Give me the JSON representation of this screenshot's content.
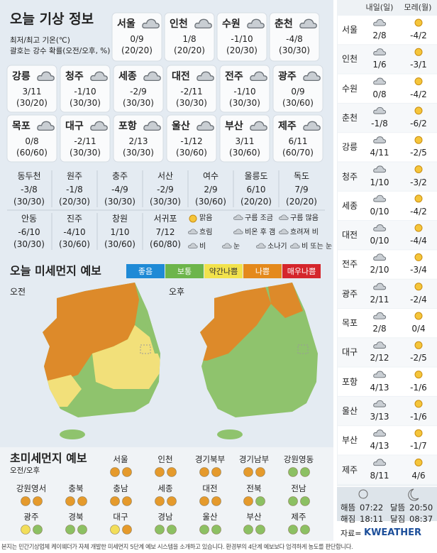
{
  "header": {
    "title": "오늘 기상 정보",
    "notes": [
      "최저/최고 기온(℃)",
      "괄호는 강수 확률(오전/오후, %)"
    ]
  },
  "cities": [
    {
      "name": "서울",
      "temp": "0/9",
      "rain": "(20/20)"
    },
    {
      "name": "인천",
      "temp": "1/8",
      "rain": "(20/20)"
    },
    {
      "name": "수원",
      "temp": "-1/10",
      "rain": "(20/30)"
    },
    {
      "name": "춘천",
      "temp": "-4/8",
      "rain": "(30/30)"
    },
    {
      "name": "강릉",
      "temp": "3/11",
      "rain": "(30/20)"
    },
    {
      "name": "청주",
      "temp": "-1/10",
      "rain": "(30/30)"
    },
    {
      "name": "세종",
      "temp": "-2/9",
      "rain": "(30/30)"
    },
    {
      "name": "대전",
      "temp": "-2/11",
      "rain": "(30/30)"
    },
    {
      "name": "전주",
      "temp": "-1/10",
      "rain": "(30/30)"
    },
    {
      "name": "광주",
      "temp": "0/9",
      "rain": "(30/60)"
    },
    {
      "name": "목포",
      "temp": "0/8",
      "rain": "(60/60)"
    },
    {
      "name": "대구",
      "temp": "-2/11",
      "rain": "(30/30)"
    },
    {
      "name": "포항",
      "temp": "2/13",
      "rain": "(30/30)"
    },
    {
      "name": "울산",
      "temp": "-1/12",
      "rain": "(30/60)"
    },
    {
      "name": "부산",
      "temp": "3/11",
      "rain": "(30/60)"
    },
    {
      "name": "제주",
      "temp": "6/11",
      "rain": "(60/70)"
    }
  ],
  "minor_cities": [
    {
      "name": "동두천",
      "temp": "-3/8",
      "rain": "(30/30)"
    },
    {
      "name": "원주",
      "temp": "-1/8",
      "rain": "(20/30)"
    },
    {
      "name": "충주",
      "temp": "-4/9",
      "rain": "(30/30)"
    },
    {
      "name": "서산",
      "temp": "-2/9",
      "rain": "(30/30)"
    },
    {
      "name": "여수",
      "temp": "2/9",
      "rain": "(30/60)"
    },
    {
      "name": "울릉도",
      "temp": "6/10",
      "rain": "(20/20)"
    },
    {
      "name": "독도",
      "temp": "7/9",
      "rain": "(20/20)"
    },
    {
      "name": "안동",
      "temp": "-6/10",
      "rain": "(30/30)"
    },
    {
      "name": "진주",
      "temp": "-4/10",
      "rain": "(30/60)"
    },
    {
      "name": "창원",
      "temp": "1/10",
      "rain": "(30/60)"
    },
    {
      "name": "서귀포",
      "temp": "7/12",
      "rain": "(60/80)"
    }
  ],
  "icon_legend": [
    "맑음",
    "구름 조금",
    "구름 많음",
    "흐림",
    "비온 후 갬",
    "흐려져 비",
    "비",
    "눈",
    "소나기",
    "비 또는 눈"
  ],
  "dust": {
    "title": "오늘 미세먼지 예보",
    "scale": [
      {
        "label": "좋음",
        "color": "#1f8ad6"
      },
      {
        "label": "보통",
        "color": "#6db54b"
      },
      {
        "label": "약간나쁨",
        "color": "#f2e24c"
      },
      {
        "label": "나쁨",
        "color": "#e4891c"
      },
      {
        "label": "매우나쁨",
        "color": "#d5262c"
      }
    ],
    "am": "오전",
    "pm": "오후"
  },
  "fine_dust": {
    "title": "초미세먼지 예보",
    "subtitle": "오전/오후",
    "regions": [
      {
        "name": "서울",
        "colors": [
          "#e59a2c",
          "#e59a2c"
        ]
      },
      {
        "name": "인천",
        "colors": [
          "#e59a2c",
          "#e59a2c"
        ]
      },
      {
        "name": "경기북부",
        "colors": [
          "#e59a2c",
          "#e59a2c"
        ]
      },
      {
        "name": "경기남부",
        "colors": [
          "#e59a2c",
          "#e59a2c"
        ]
      },
      {
        "name": "강원영동",
        "colors": [
          "#8cc063",
          "#8cc063"
        ]
      },
      {
        "name": "강원영서",
        "colors": [
          "#e59a2c",
          "#e59a2c"
        ]
      },
      {
        "name": "충북",
        "colors": [
          "#e59a2c",
          "#e59a2c"
        ]
      },
      {
        "name": "충남",
        "colors": [
          "#e59a2c",
          "#e59a2c"
        ]
      },
      {
        "name": "세종",
        "colors": [
          "#e59a2c",
          "#e59a2c"
        ]
      },
      {
        "name": "대전",
        "colors": [
          "#e59a2c",
          "#e59a2c"
        ]
      },
      {
        "name": "전북",
        "colors": [
          "#e59a2c",
          "#8cc063"
        ]
      },
      {
        "name": "전남",
        "colors": [
          "#8cc063",
          "#8cc063"
        ]
      },
      {
        "name": "광주",
        "colors": [
          "#f2de5a",
          "#8cc063"
        ]
      },
      {
        "name": "경북",
        "colors": [
          "#8cc063",
          "#8cc063"
        ]
      },
      {
        "name": "대구",
        "colors": [
          "#f2de5a",
          "#e59a2c"
        ]
      },
      {
        "name": "경남",
        "colors": [
          "#8cc063",
          "#8cc063"
        ]
      },
      {
        "name": "울산",
        "colors": [
          "#8cc063",
          "#8cc063"
        ]
      },
      {
        "name": "부산",
        "colors": [
          "#8cc063",
          "#8cc063"
        ]
      },
      {
        "name": "제주",
        "colors": [
          "#8cc063",
          "#8cc063"
        ]
      }
    ]
  },
  "forecast": {
    "days": [
      "내일(일)",
      "모레(월)"
    ],
    "rows": [
      {
        "city": "서울",
        "temps": [
          "2/8",
          "-4/2"
        ]
      },
      {
        "city": "인천",
        "temps": [
          "1/6",
          "-3/1"
        ]
      },
      {
        "city": "수원",
        "temps": [
          "0/8",
          "-4/2"
        ]
      },
      {
        "city": "춘천",
        "temps": [
          "-1/8",
          "-6/2"
        ]
      },
      {
        "city": "강릉",
        "temps": [
          "4/11",
          "-2/5"
        ]
      },
      {
        "city": "청주",
        "temps": [
          "1/10",
          "-3/2"
        ]
      },
      {
        "city": "세종",
        "temps": [
          "0/10",
          "-4/2"
        ]
      },
      {
        "city": "대전",
        "temps": [
          "0/10",
          "-4/4"
        ]
      },
      {
        "city": "전주",
        "temps": [
          "2/10",
          "-3/4"
        ]
      },
      {
        "city": "광주",
        "temps": [
          "2/11",
          "-2/4"
        ]
      },
      {
        "city": "목포",
        "temps": [
          "2/8",
          "0/4"
        ]
      },
      {
        "city": "대구",
        "temps": [
          "2/12",
          "-2/5"
        ]
      },
      {
        "city": "포항",
        "temps": [
          "4/13",
          "-1/6"
        ]
      },
      {
        "city": "울산",
        "temps": [
          "3/13",
          "-1/6"
        ]
      },
      {
        "city": "부산",
        "temps": [
          "4/13",
          "-1/7"
        ]
      },
      {
        "city": "제주",
        "temps": [
          "8/11",
          "4/6"
        ]
      }
    ]
  },
  "astro": [
    {
      "label": "해뜸",
      "time": "07:22"
    },
    {
      "label": "해짐",
      "time": "18:11"
    },
    {
      "label": "달뜸",
      "time": "20:50"
    },
    {
      "label": "달짐",
      "time": "08:37"
    }
  ],
  "source": {
    "prefix": "자료=",
    "name": "KWEATHER"
  },
  "footer": "본지는 민간기상업체 케이웨더가 자체 개발한 미세먼지 5단계 예보 시스템을 소개하고 있습니다. 환경부의 4단계 예보보다 엄격하게 농도를 판단합니다."
}
